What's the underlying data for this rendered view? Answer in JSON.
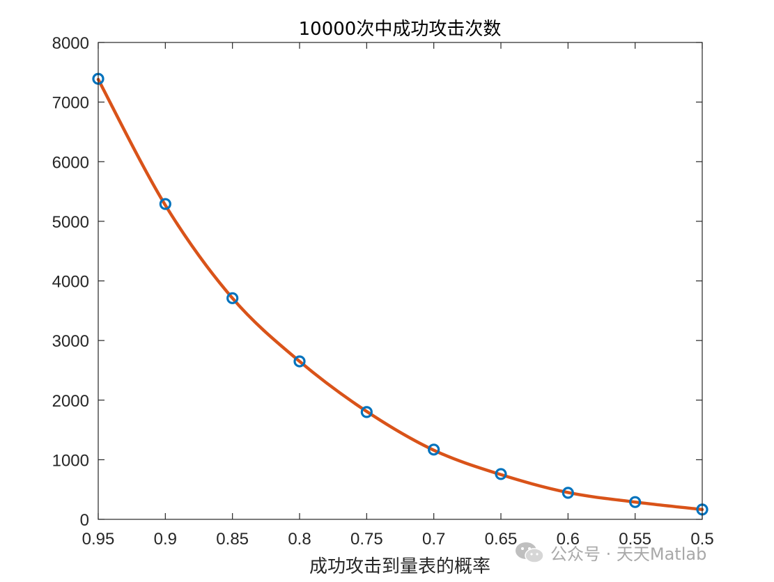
{
  "chart_data": {
    "type": "line",
    "title": "10000次中成功攻击次数",
    "xlabel": "成功攻击到量表的概率",
    "ylabel": "",
    "x_reversed": true,
    "xlim": [
      0.5,
      0.95
    ],
    "ylim": [
      0,
      8000
    ],
    "x_tick_labels": [
      "0.95",
      "0.9",
      "0.85",
      "0.8",
      "0.75",
      "0.7",
      "0.65",
      "0.6",
      "0.55",
      "0.5"
    ],
    "y_tick_labels": [
      "0",
      "1000",
      "2000",
      "3000",
      "4000",
      "5000",
      "6000",
      "7000",
      "8000"
    ],
    "grid": false,
    "series": [
      {
        "marker": "circle",
        "color": "#0072BD",
        "x": [
          0.95,
          0.9,
          0.85,
          0.8,
          0.75,
          0.7,
          0.65,
          0.6,
          0.55,
          0.5
        ],
        "y": [
          7390,
          5290,
          3710,
          2650,
          1800,
          1170,
          760,
          445,
          290,
          165
        ]
      },
      {
        "style": "line",
        "color": "#D95319",
        "x": [
          0.95,
          0.9,
          0.85,
          0.8,
          0.75,
          0.7,
          0.65,
          0.6,
          0.55,
          0.5
        ],
        "y": [
          7380,
          5270,
          3710,
          2650,
          1810,
          1160,
          750,
          450,
          290,
          165
        ]
      }
    ]
  },
  "watermark": {
    "icon": "wechat-icon",
    "text": "公众号 · 天天Matlab"
  }
}
